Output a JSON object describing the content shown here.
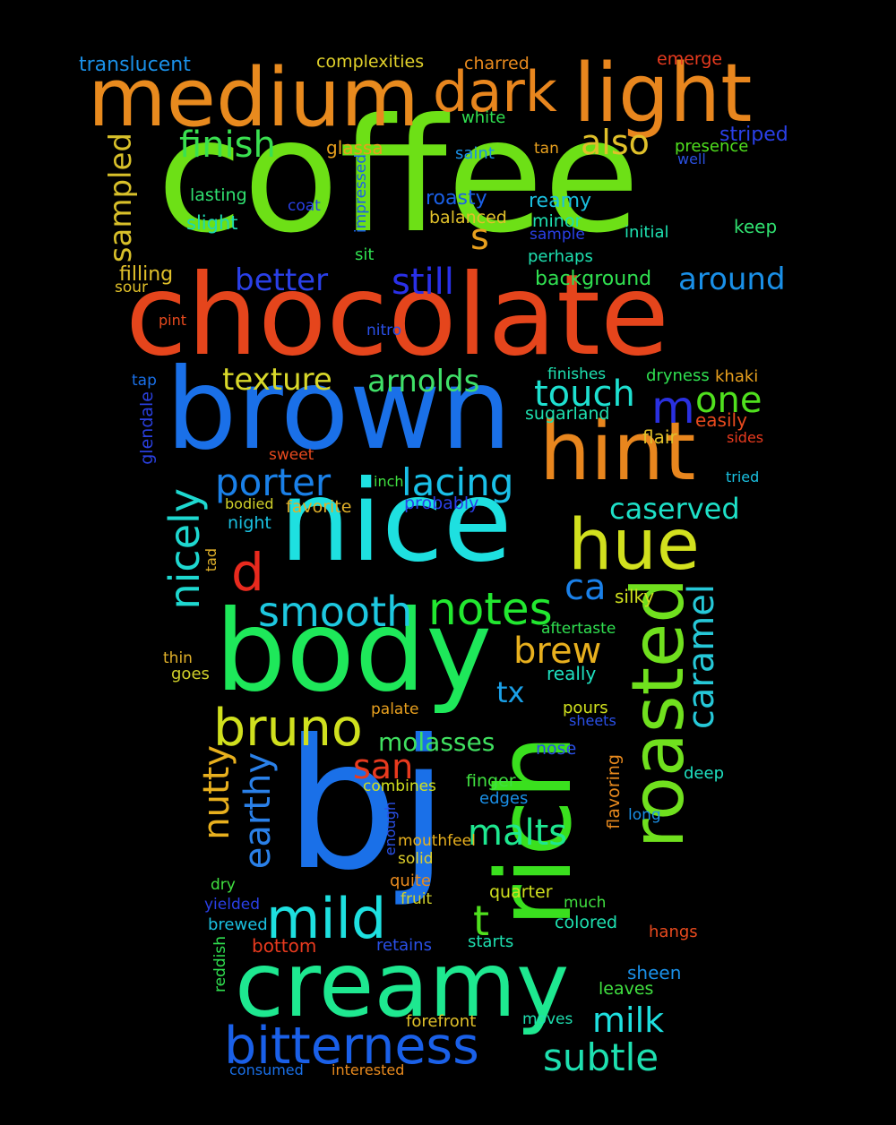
{
  "words": [
    {
      "text": "coffee",
      "color": "#6de016"
    },
    {
      "text": "chocolate",
      "color": "#e5451c"
    },
    {
      "text": "brown",
      "color": "#1a70e8"
    },
    {
      "text": "bj",
      "color": "#1a70e8"
    },
    {
      "text": "nice",
      "color": "#1ee0e0"
    },
    {
      "text": "body",
      "color": "#1ee85a"
    },
    {
      "text": "creamy",
      "color": "#1ee890"
    },
    {
      "text": "rich",
      "color": "#3ae01e"
    },
    {
      "text": "medium",
      "color": "#e88a1e"
    },
    {
      "text": "light",
      "color": "#e8861e"
    },
    {
      "text": "dark",
      "color": "#e8861e"
    },
    {
      "text": "hint",
      "color": "#e8861e"
    },
    {
      "text": "hue",
      "color": "#d2e01e"
    },
    {
      "text": "roasted",
      "color": "#70e01e"
    },
    {
      "text": "bitterness",
      "color": "#1a60e8"
    },
    {
      "text": "bruno",
      "color": "#d0e01e"
    },
    {
      "text": "mild",
      "color": "#1ee0e0"
    },
    {
      "text": "nicely",
      "color": "#1ed8d0"
    },
    {
      "text": "porter",
      "color": "#1a80e8"
    },
    {
      "text": "lacing",
      "color": "#1ac0e8"
    },
    {
      "text": "notes",
      "color": "#22e830"
    },
    {
      "text": "smooth",
      "color": "#1ec8e0"
    },
    {
      "text": "caramel",
      "color": "#26c8d8"
    },
    {
      "text": "subtle",
      "color": "#1ee0b0"
    },
    {
      "text": "still",
      "color": "#2a30e8"
    },
    {
      "text": "better",
      "color": "#2a40e8"
    },
    {
      "text": "finish",
      "color": "#3ae050"
    },
    {
      "text": "also",
      "color": "#e0c02a"
    },
    {
      "text": "touch",
      "color": "#1ee0d0"
    },
    {
      "text": "one",
      "color": "#50e01e"
    },
    {
      "text": "caserved",
      "color": "#1ee0c8"
    },
    {
      "text": "texture",
      "color": "#d8d82a"
    },
    {
      "text": "arnolds",
      "color": "#40e068"
    },
    {
      "text": "around",
      "color": "#1a90e8"
    },
    {
      "text": "sampled",
      "color": "#d8c02a"
    },
    {
      "text": "nutty",
      "color": "#e8b01e"
    },
    {
      "text": "earthy",
      "color": "#2a80e8"
    },
    {
      "text": "malts",
      "color": "#1ee890"
    },
    {
      "text": "milk",
      "color": "#1ee0e0"
    },
    {
      "text": "brew",
      "color": "#e8b01e"
    },
    {
      "text": "molasses",
      "color": "#40e060"
    },
    {
      "text": "san",
      "color": "#e83a1e"
    },
    {
      "text": "m",
      "color": "#2a30e0"
    },
    {
      "text": "d",
      "color": "#e82a1e"
    },
    {
      "text": "s",
      "color": "#e8a01e"
    },
    {
      "text": "t",
      "color": "#50e01e"
    },
    {
      "text": "ca",
      "color": "#1a80e8"
    },
    {
      "text": "tx",
      "color": "#1aa0e8"
    },
    {
      "text": "translucent",
      "color": "#1a90e8"
    },
    {
      "text": "complexities",
      "color": "#e0d02a"
    },
    {
      "text": "charred",
      "color": "#e88a1e"
    },
    {
      "text": "emerge",
      "color": "#e83a1e"
    },
    {
      "text": "white",
      "color": "#30e050"
    },
    {
      "text": "glassa",
      "color": "#e8a01e"
    },
    {
      "text": "saint",
      "color": "#1a90e8"
    },
    {
      "text": "tan",
      "color": "#e8a01e"
    },
    {
      "text": "presence",
      "color": "#50e01e"
    },
    {
      "text": "striped",
      "color": "#2a40e8"
    },
    {
      "text": "well",
      "color": "#2a50e0"
    },
    {
      "text": "lasting",
      "color": "#30e070"
    },
    {
      "text": "coat",
      "color": "#2a40e8"
    },
    {
      "text": "impressed",
      "color": "#1a60e8"
    },
    {
      "text": "roasty",
      "color": "#1a60e8"
    },
    {
      "text": "reamy",
      "color": "#1ac0e0"
    },
    {
      "text": "slight",
      "color": "#1ed8b0"
    },
    {
      "text": "balanced",
      "color": "#e0c02a"
    },
    {
      "text": "minor",
      "color": "#1ee0b0"
    },
    {
      "text": "initial",
      "color": "#1ee0b0"
    },
    {
      "text": "keep",
      "color": "#30e070"
    },
    {
      "text": "sample",
      "color": "#2a40e8"
    },
    {
      "text": "sit",
      "color": "#30e050"
    },
    {
      "text": "perhaps",
      "color": "#1ee0b0"
    },
    {
      "text": "filling",
      "color": "#e0c02a"
    },
    {
      "text": "sour",
      "color": "#e0c02a"
    },
    {
      "text": "background",
      "color": "#30e050"
    },
    {
      "text": "pint",
      "color": "#e84a1e"
    },
    {
      "text": "nitro",
      "color": "#2a50e8"
    },
    {
      "text": "finishes",
      "color": "#1ee0b0"
    },
    {
      "text": "dryness",
      "color": "#30e050"
    },
    {
      "text": "khaki",
      "color": "#e8a01e"
    },
    {
      "text": "tap",
      "color": "#1a70e8"
    },
    {
      "text": "glendale",
      "color": "#2a40e0"
    },
    {
      "text": "sugarland",
      "color": "#1ee0b0"
    },
    {
      "text": "easily",
      "color": "#e84a1e"
    },
    {
      "text": "flair",
      "color": "#e0c02a"
    },
    {
      "text": "sides",
      "color": "#e83a1e"
    },
    {
      "text": "sweet",
      "color": "#e84a1e"
    },
    {
      "text": "tried",
      "color": "#1ac0e0"
    },
    {
      "text": "inch",
      "color": "#40e040"
    },
    {
      "text": "bodied",
      "color": "#d0d02a"
    },
    {
      "text": "favorite",
      "color": "#e0b02a"
    },
    {
      "text": "probably",
      "color": "#2a40e8"
    },
    {
      "text": "night",
      "color": "#1ac0e0"
    },
    {
      "text": "tad",
      "color": "#e0b02a"
    },
    {
      "text": "silky",
      "color": "#d0e01e"
    },
    {
      "text": "aftertaste",
      "color": "#30e050"
    },
    {
      "text": "thin",
      "color": "#e0b02a"
    },
    {
      "text": "goes",
      "color": "#d0d02a"
    },
    {
      "text": "really",
      "color": "#1ee0c0"
    },
    {
      "text": "palate",
      "color": "#e8a01e"
    },
    {
      "text": "pours",
      "color": "#d0e01e"
    },
    {
      "text": "sheets",
      "color": "#2a50e8"
    },
    {
      "text": "nose",
      "color": "#2a50e8"
    },
    {
      "text": "combines",
      "color": "#d0e01e"
    },
    {
      "text": "finger",
      "color": "#40e040"
    },
    {
      "text": "flavoring",
      "color": "#e88a1e"
    },
    {
      "text": "deep",
      "color": "#1ee0c0"
    },
    {
      "text": "edges",
      "color": "#1a90e8"
    },
    {
      "text": "enough",
      "color": "#2a50e8"
    },
    {
      "text": "mouthfeel",
      "color": "#e8b01e"
    },
    {
      "text": "long",
      "color": "#1a90e8"
    },
    {
      "text": "solid",
      "color": "#e0d02a"
    },
    {
      "text": "dry",
      "color": "#40e040"
    },
    {
      "text": "quite",
      "color": "#e88a1e"
    },
    {
      "text": "quarter",
      "color": "#d0e01e"
    },
    {
      "text": "fruit",
      "color": "#d0d02a"
    },
    {
      "text": "much",
      "color": "#40e040"
    },
    {
      "text": "yielded",
      "color": "#2a40e8"
    },
    {
      "text": "brewed",
      "color": "#1ac0e0"
    },
    {
      "text": "colored",
      "color": "#1ee0b0"
    },
    {
      "text": "hangs",
      "color": "#e84a1e"
    },
    {
      "text": "reddish",
      "color": "#30e050"
    },
    {
      "text": "bottom",
      "color": "#e83a1e"
    },
    {
      "text": "retains",
      "color": "#2a50e8"
    },
    {
      "text": "starts",
      "color": "#1ee0b0"
    },
    {
      "text": "sheen",
      "color": "#1a90e8"
    },
    {
      "text": "leaves",
      "color": "#40e040"
    },
    {
      "text": "forefront",
      "color": "#e0c02a"
    },
    {
      "text": "moves",
      "color": "#1ee0b0"
    },
    {
      "text": "consumed",
      "color": "#1a70e8"
    },
    {
      "text": "interested",
      "color": "#e88a1e"
    }
  ]
}
